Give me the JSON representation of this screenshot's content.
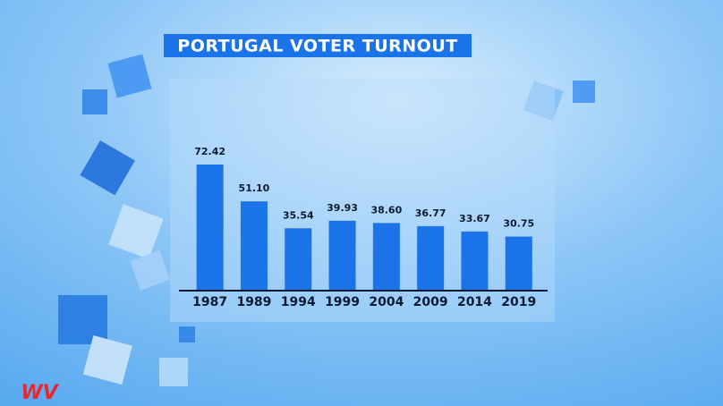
{
  "chart_data": {
    "type": "bar",
    "title": "PORTUGAL VOTER TURNOUT",
    "categories": [
      "1987",
      "1989",
      "1994",
      "1999",
      "2004",
      "2009",
      "2014",
      "2019"
    ],
    "values": [
      72.42,
      51.1,
      35.54,
      39.93,
      38.6,
      36.77,
      33.67,
      30.75
    ],
    "value_labels": [
      "72.42",
      "51.10",
      "35.54",
      "39.93",
      "38.60",
      "36.77",
      "33.67",
      "30.75"
    ],
    "color": "#1a73e8"
  },
  "logo": "WV"
}
